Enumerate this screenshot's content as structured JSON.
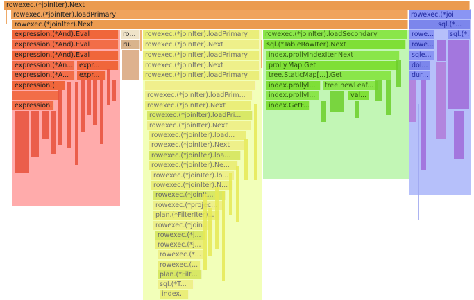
{
  "flame": {
    "row0": {
      "root": "rowexec.(*joinIter).Next"
    },
    "row1": {
      "main": "rowexec.(*joinIter).loadPrimary",
      "right": "rowexec.(*joi"
    },
    "row2": {
      "main": "rowexec.(*joinIter).Next"
    },
    "expression_col": [
      "expression.(*And).Eval",
      "expression.(*And).Eval",
      "expression.(*And).Eval",
      "expression.(*An...",
      "expression.(*A...",
      "expression.(...",
      "expression..."
    ],
    "expr_small": [
      "expr...",
      "expr..."
    ],
    "ro_col": [
      "ro...",
      "ru..."
    ],
    "yellow_col": [
      "rowexec.(*joinIter).loadPrimary",
      "rowexec.(*joinIter).Next",
      "rowexec.(*joinIter).loadPrimary",
      "rowexec.(*joinIter).Next",
      "rowexec.(*joinIter).loadPrimary",
      "rowexec.(*joinIter).loadPrim...",
      "rowexec.(*joinIter).Next",
      "rowexec.(*joinIter).loadPri...",
      "rowexec.(*joinIter).Next",
      "rowexec.(*joinIter).load...",
      "rowexec.(*joinIter).Next",
      "rowexec.(*joinIter).loa...",
      "rowexec.(*joinIter).Ne...",
      "rowexec.(*joinIter).lo...",
      "rowexec.(*joinIter).N...",
      "rowexec.(*joinIt...",
      "rowexec.(*projec...",
      "plan.(*FilterIter)...",
      "rowexec.(*join...",
      "rowexec.(*j...",
      "rowexec.(*j...",
      "rowexec.(*...",
      "rowexec.(...",
      "plan.(*Filt...",
      "sql.(*T...",
      "index...."
    ],
    "green_col": [
      "rowexec.(*joinIter).loadSecondary",
      "sql.(*TableRowIter).Next",
      "index.prollyIndexIter.Next",
      "prolly.Map.Get",
      "tree.StaticMap[...].Get"
    ],
    "green_split_a": [
      "index.prollyI...",
      "index.prollyI...",
      "index.GetF..."
    ],
    "green_split_b": [
      "tree.newLeaf...",
      "val..."
    ],
    "blue_col": [
      "rowexec.(*joi",
      "rowe...",
      "rowe...",
      "sqle...",
      "dol...",
      "dur..."
    ],
    "blue_side": [
      "sql.(*...",
      "sql.(*..."
    ],
    "colors": {
      "orange": "#eb9b4f",
      "red": "#f0663b",
      "yellow": "#eaee7a",
      "green": "#8ae64a",
      "blue": "#8a95f4",
      "purple": "#a06ad8"
    }
  }
}
